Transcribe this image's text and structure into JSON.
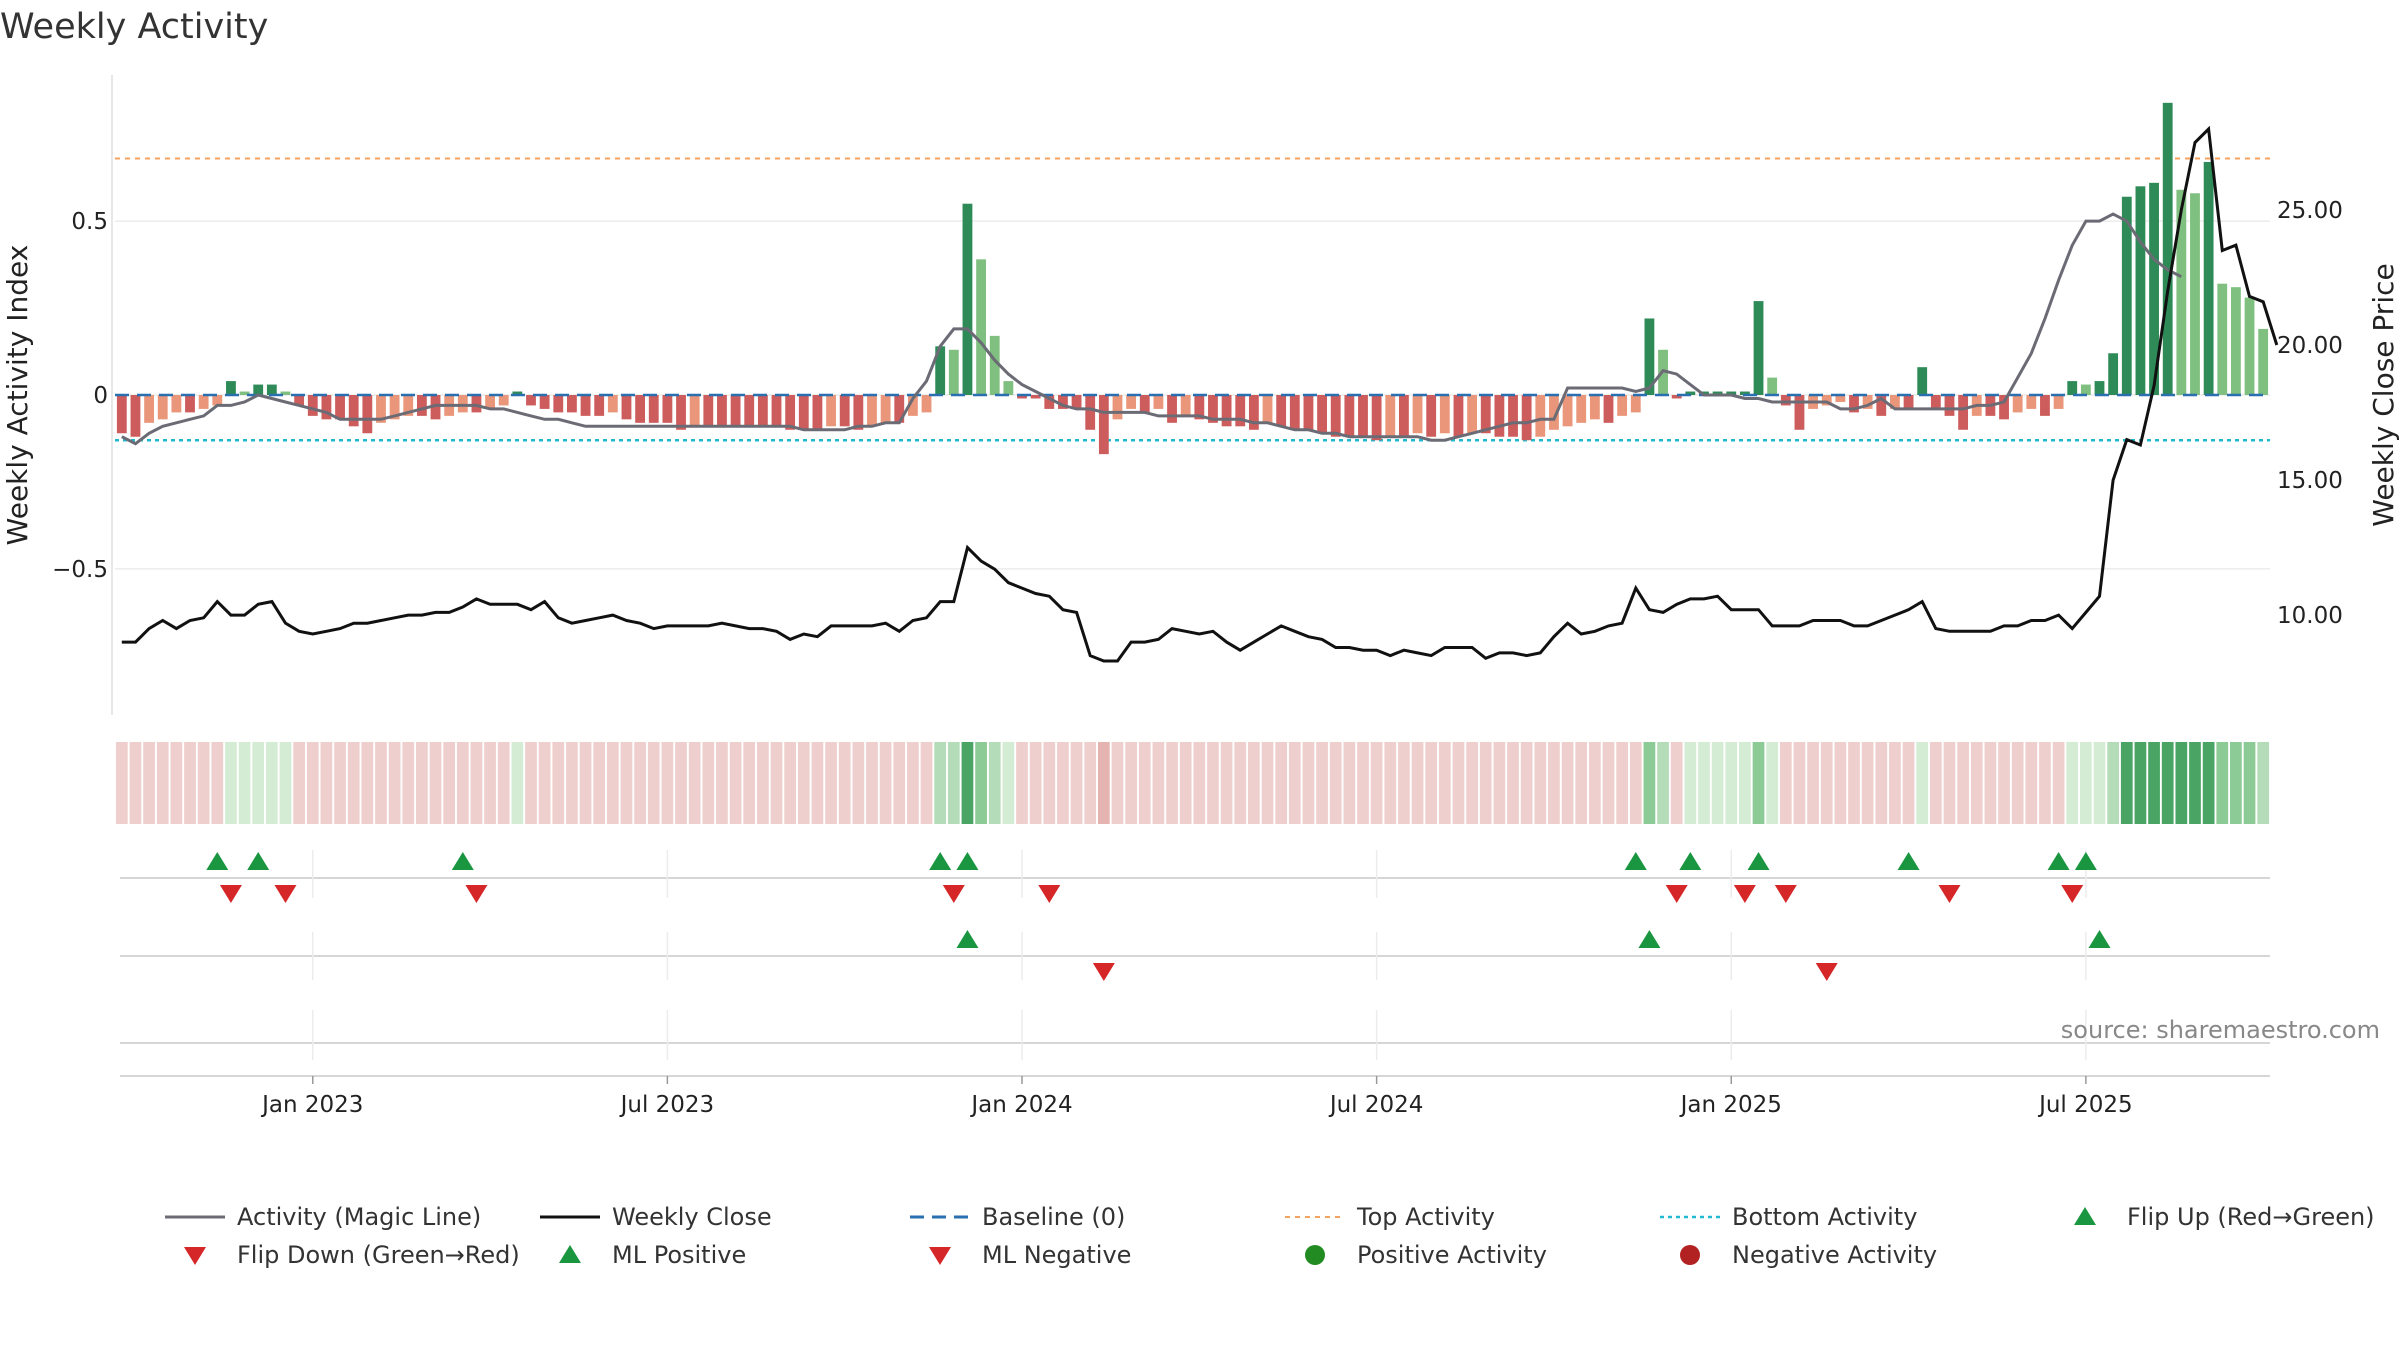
{
  "chart_data": {
    "type": "bar",
    "title": "Weekly Activity",
    "ylabel_left": "Weekly Activity Index",
    "ylabel_right": "Weekly Close Price",
    "source": "source: sharemaestro.com",
    "left_ylim": [
      -0.92,
      0.92
    ],
    "right_ylim": [
      6.3,
      30.0
    ],
    "left_ticks": [
      {
        "v": 0.5,
        "label": "0.5"
      },
      {
        "v": 0,
        "label": "0"
      },
      {
        "v": -0.5,
        "label": "−0.5"
      }
    ],
    "right_ticks": [
      {
        "v": 25,
        "label": "25.00"
      },
      {
        "v": 20,
        "label": "20.00"
      },
      {
        "v": 15,
        "label": "15.00"
      },
      {
        "v": 10,
        "label": "10.00"
      }
    ],
    "x_ticks": [
      {
        "i": 14,
        "label": "Jan 2023"
      },
      {
        "i": 40,
        "label": "Jul 2023"
      },
      {
        "i": 66,
        "label": "Jan 2024"
      },
      {
        "i": 92,
        "label": "Jul 2024"
      },
      {
        "i": 118,
        "label": "Jan 2025"
      },
      {
        "i": 144,
        "label": "Jul 2025"
      }
    ],
    "n_weeks": 157,
    "colors": {
      "strong_green": "#2e8b57",
      "light_green": "#7fbf7f",
      "strong_red": "#cd5c5c",
      "light_red": "#e9967a",
      "magic_line": "#6b6b75",
      "close_line": "#111111",
      "baseline": "#2a6fb0",
      "top": "#f4a460",
      "bottom": "#22b8cf",
      "flip_up": "#1a9641",
      "flip_down": "#d62728",
      "pos_dot": "#228b22",
      "neg_dot": "#b22222"
    },
    "top_activity": 0.68,
    "bottom_activity": -0.13,
    "series": [
      {
        "name": "Weekly Activity",
        "values": [
          -0.11,
          -0.12,
          -0.08,
          -0.07,
          -0.05,
          -0.05,
          -0.04,
          -0.03,
          0.04,
          0.01,
          0.03,
          0.03,
          0.01,
          -0.03,
          -0.06,
          -0.07,
          -0.07,
          -0.09,
          -0.11,
          -0.08,
          -0.07,
          -0.06,
          -0.06,
          -0.07,
          -0.06,
          -0.05,
          -0.05,
          -0.04,
          -0.03,
          0.01,
          -0.03,
          -0.04,
          -0.05,
          -0.05,
          -0.06,
          -0.06,
          -0.05,
          -0.07,
          -0.08,
          -0.08,
          -0.08,
          -0.1,
          -0.09,
          -0.09,
          -0.09,
          -0.09,
          -0.09,
          -0.09,
          -0.09,
          -0.1,
          -0.1,
          -0.1,
          -0.09,
          -0.09,
          -0.1,
          -0.09,
          -0.08,
          -0.08,
          -0.06,
          -0.05,
          0.14,
          0.13,
          0.55,
          0.39,
          0.17,
          0.04,
          -0.01,
          -0.01,
          -0.04,
          -0.04,
          -0.04,
          -0.1,
          -0.17,
          -0.07,
          -0.04,
          -0.05,
          -0.04,
          -0.08,
          -0.06,
          -0.07,
          -0.08,
          -0.09,
          -0.09,
          -0.1,
          -0.08,
          -0.09,
          -0.1,
          -0.1,
          -0.11,
          -0.12,
          -0.12,
          -0.12,
          -0.13,
          -0.12,
          -0.12,
          -0.11,
          -0.12,
          -0.11,
          -0.12,
          -0.11,
          -0.11,
          -0.12,
          -0.12,
          -0.13,
          -0.12,
          -0.1,
          -0.09,
          -0.08,
          -0.07,
          -0.08,
          -0.06,
          -0.05,
          0.22,
          0.13,
          -0.01,
          0.01,
          0.01,
          0.01,
          0.01,
          0.01,
          0.27,
          0.05,
          -0.03,
          -0.1,
          -0.04,
          -0.03,
          -0.02,
          -0.05,
          -0.04,
          -0.06,
          -0.04,
          -0.04,
          0.08,
          -0.04,
          -0.06,
          -0.1,
          -0.06,
          -0.06,
          -0.07,
          -0.05,
          -0.04,
          -0.06,
          -0.04,
          0.04,
          0.03,
          0.04,
          0.12,
          0.57,
          0.6,
          0.61,
          0.84,
          0.59,
          0.58,
          0.67,
          0.32,
          0.31,
          0.28,
          0.19
        ]
      },
      {
        "name": "Activity (Magic Line)",
        "values": [
          -0.12,
          -0.14,
          -0.11,
          -0.09,
          -0.08,
          -0.07,
          -0.06,
          -0.03,
          -0.03,
          -0.02,
          0.0,
          -0.01,
          -0.02,
          -0.03,
          -0.04,
          -0.05,
          -0.07,
          -0.07,
          -0.07,
          -0.07,
          -0.06,
          -0.05,
          -0.04,
          -0.03,
          -0.03,
          -0.03,
          -0.03,
          -0.04,
          -0.04,
          -0.05,
          -0.06,
          -0.07,
          -0.07,
          -0.08,
          -0.09,
          -0.09,
          -0.09,
          -0.09,
          -0.09,
          -0.09,
          -0.09,
          -0.09,
          -0.09,
          -0.09,
          -0.09,
          -0.09,
          -0.09,
          -0.09,
          -0.09,
          -0.09,
          -0.1,
          -0.1,
          -0.1,
          -0.1,
          -0.09,
          -0.09,
          -0.08,
          -0.08,
          -0.01,
          0.04,
          0.14,
          0.19,
          0.19,
          0.15,
          0.1,
          0.06,
          0.03,
          0.01,
          -0.01,
          -0.03,
          -0.04,
          -0.04,
          -0.05,
          -0.05,
          -0.05,
          -0.05,
          -0.06,
          -0.06,
          -0.06,
          -0.06,
          -0.07,
          -0.07,
          -0.07,
          -0.08,
          -0.08,
          -0.09,
          -0.1,
          -0.1,
          -0.11,
          -0.11,
          -0.12,
          -0.12,
          -0.12,
          -0.12,
          -0.12,
          -0.12,
          -0.13,
          -0.13,
          -0.12,
          -0.11,
          -0.1,
          -0.09,
          -0.08,
          -0.08,
          -0.07,
          -0.07,
          0.02,
          0.02,
          0.02,
          0.02,
          0.02,
          0.01,
          0.02,
          0.07,
          0.06,
          0.03,
          0.0,
          0.0,
          0.0,
          -0.01,
          -0.01,
          -0.02,
          -0.02,
          -0.02,
          -0.02,
          -0.02,
          -0.04,
          -0.04,
          -0.03,
          -0.01,
          -0.04,
          -0.04,
          -0.04,
          -0.04,
          -0.04,
          -0.04,
          -0.03,
          -0.03,
          -0.02,
          0.05,
          0.12,
          0.22,
          0.33,
          0.43,
          0.5,
          0.5,
          0.52,
          0.5,
          0.44,
          0.39,
          0.36,
          0.34
        ]
      },
      {
        "name": "Weekly Close",
        "values": [
          9.0,
          9.0,
          9.5,
          9.8,
          9.5,
          9.8,
          9.9,
          10.5,
          10.0,
          10.0,
          10.4,
          10.5,
          9.7,
          9.4,
          9.3,
          9.4,
          9.5,
          9.7,
          9.7,
          9.8,
          9.9,
          10.0,
          10.0,
          10.1,
          10.1,
          10.3,
          10.6,
          10.4,
          10.4,
          10.4,
          10.2,
          10.5,
          9.9,
          9.7,
          9.8,
          9.9,
          10.0,
          9.8,
          9.7,
          9.5,
          9.6,
          9.6,
          9.6,
          9.6,
          9.7,
          9.6,
          9.5,
          9.5,
          9.4,
          9.1,
          9.3,
          9.2,
          9.6,
          9.6,
          9.6,
          9.6,
          9.7,
          9.4,
          9.8,
          9.9,
          10.5,
          10.5,
          12.5,
          12.0,
          11.7,
          11.2,
          11.0,
          10.8,
          10.7,
          10.2,
          10.1,
          8.5,
          8.3,
          8.3,
          9.0,
          9.0,
          9.1,
          9.5,
          9.4,
          9.3,
          9.4,
          9.0,
          8.7,
          9.0,
          9.3,
          9.6,
          9.4,
          9.2,
          9.1,
          8.8,
          8.8,
          8.7,
          8.7,
          8.5,
          8.7,
          8.6,
          8.5,
          8.8,
          8.8,
          8.8,
          8.4,
          8.6,
          8.6,
          8.5,
          8.6,
          9.2,
          9.7,
          9.3,
          9.4,
          9.6,
          9.7,
          11.0,
          10.2,
          10.1,
          10.4,
          10.6,
          10.6,
          10.7,
          10.2,
          10.2,
          10.2,
          9.6,
          9.6,
          9.6,
          9.8,
          9.8,
          9.8,
          9.6,
          9.6,
          9.8,
          10.0,
          10.2,
          10.5,
          9.5,
          9.4,
          9.4,
          9.4,
          9.4,
          9.6,
          9.6,
          9.8,
          9.8,
          10.0,
          9.5,
          10.1,
          10.7,
          15.0,
          16.5,
          16.3,
          18.5,
          22.0,
          25.0,
          27.5,
          28.0,
          23.5,
          23.7,
          21.8,
          21.6,
          20.0
        ]
      }
    ],
    "flip_up_row1": [
      7,
      10,
      25,
      60,
      62,
      111,
      115,
      120,
      131,
      142,
      144
    ],
    "flip_down_row1": [
      8,
      12,
      26,
      61,
      68,
      114,
      119,
      122,
      134,
      143
    ],
    "ml_positive_row2": [
      62,
      112,
      145
    ],
    "ml_negative_row2": [
      72,
      125
    ],
    "legend": [
      {
        "key": "magic_line",
        "label": "Activity (Magic Line)"
      },
      {
        "key": "close_line",
        "label": "Weekly Close"
      },
      {
        "key": "baseline",
        "label": "Baseline (0)"
      },
      {
        "key": "top",
        "label": "Top Activity"
      },
      {
        "key": "bottom",
        "label": "Bottom Activity"
      },
      {
        "key": "flip_up",
        "label": "Flip Up (Red→Green)"
      },
      {
        "key": "flip_down",
        "label": "Flip Down (Green→Red)"
      },
      {
        "key": "ml_positive",
        "label": "ML Positive"
      },
      {
        "key": "ml_negative",
        "label": "ML Negative"
      },
      {
        "key": "pos_dot",
        "label": "Positive Activity"
      },
      {
        "key": "neg_dot",
        "label": "Negative Activity"
      }
    ]
  }
}
